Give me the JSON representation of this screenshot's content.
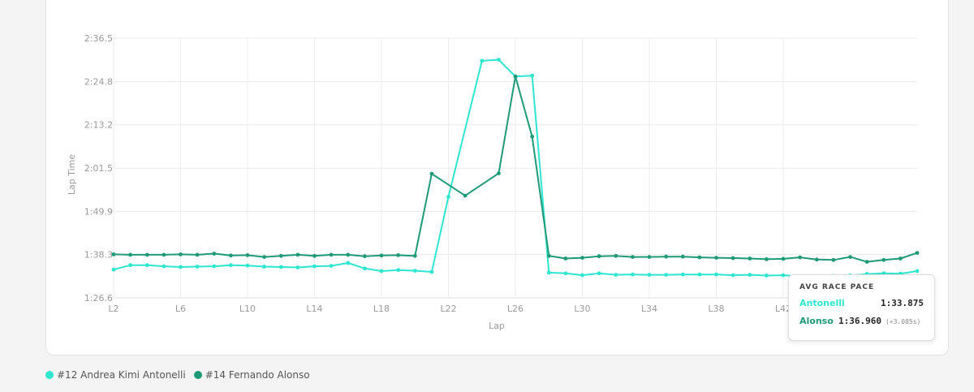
{
  "chart_data": {
    "type": "line",
    "xlabel": "Lap",
    "ylabel": "Lap Time",
    "x": [
      2,
      3,
      4,
      5,
      6,
      7,
      8,
      9,
      10,
      11,
      12,
      13,
      14,
      15,
      16,
      17,
      18,
      19,
      20,
      21,
      22,
      23,
      24,
      25,
      26,
      27,
      28,
      29,
      30,
      31,
      32,
      33,
      34,
      35,
      36,
      37,
      38,
      39,
      40,
      41,
      42,
      43,
      44,
      45,
      46,
      47,
      48,
      49,
      50
    ],
    "x_tick_labels": [
      "L2",
      "L6",
      "L10",
      "L14",
      "L18",
      "L22",
      "L26",
      "L30",
      "L34",
      "L38",
      "L42"
    ],
    "y_ticks": [
      86.6,
      98.3,
      109.9,
      121.5,
      133.2,
      144.8,
      156.5
    ],
    "y_tick_labels": [
      "1:26.6",
      "1:38.3",
      "1:49.9",
      "2:01.5",
      "2:13.2",
      "2:24.8",
      "2:36.5"
    ],
    "ylim": [
      86.6,
      156.5
    ],
    "grid": true,
    "series": [
      {
        "name": "#12 Andrea Kimi Antonelli",
        "color": "#2ee6cf",
        "values": [
          94.2,
          95.4,
          95.4,
          95.1,
          94.9,
          95.0,
          95.1,
          95.4,
          95.3,
          95.0,
          94.9,
          94.8,
          95.1,
          95.2,
          96.0,
          94.5,
          93.8,
          94.1,
          93.9,
          93.6,
          113.8,
          null,
          150.4,
          150.7,
          146.2,
          146.4,
          93.4,
          93.2,
          92.7,
          93.2,
          92.8,
          92.9,
          92.8,
          92.8,
          92.9,
          92.9,
          92.9,
          92.7,
          92.8,
          92.6,
          92.7,
          92.4,
          92.4,
          92.5,
          92.6,
          93.0,
          93.2,
          93.1,
          93.8
        ]
      },
      {
        "name": "#14 Fernando Alonso",
        "color": "#1e9a78",
        "values": [
          98.3,
          98.2,
          98.2,
          98.2,
          98.3,
          98.2,
          98.5,
          98.0,
          98.1,
          97.6,
          97.9,
          98.2,
          97.9,
          98.2,
          98.2,
          97.8,
          98.0,
          98.1,
          97.9,
          120.0,
          null,
          114.1,
          null,
          120.1,
          146.2,
          130.0,
          97.9,
          97.2,
          97.4,
          97.8,
          97.9,
          97.6,
          97.6,
          97.7,
          97.7,
          97.5,
          97.4,
          97.3,
          97.2,
          97.0,
          97.1,
          97.5,
          96.9,
          96.8,
          97.6,
          96.3,
          96.8,
          97.2,
          98.7
        ]
      }
    ]
  },
  "pace_box": {
    "title": "AVG RACE PACE",
    "rows": [
      {
        "name": "Antonelli",
        "time": "1:33.875",
        "delta": "",
        "color": "#2ee6cf"
      },
      {
        "name": "Alonso",
        "time": "1:36.960",
        "delta": "(+3.085s)",
        "color": "#1e9a78"
      }
    ]
  },
  "legend": [
    {
      "label": "#12 Andrea Kimi Antonelli",
      "color": "#2ee6cf"
    },
    {
      "label": "#14 Fernando Alonso",
      "color": "#1e9a78"
    }
  ]
}
